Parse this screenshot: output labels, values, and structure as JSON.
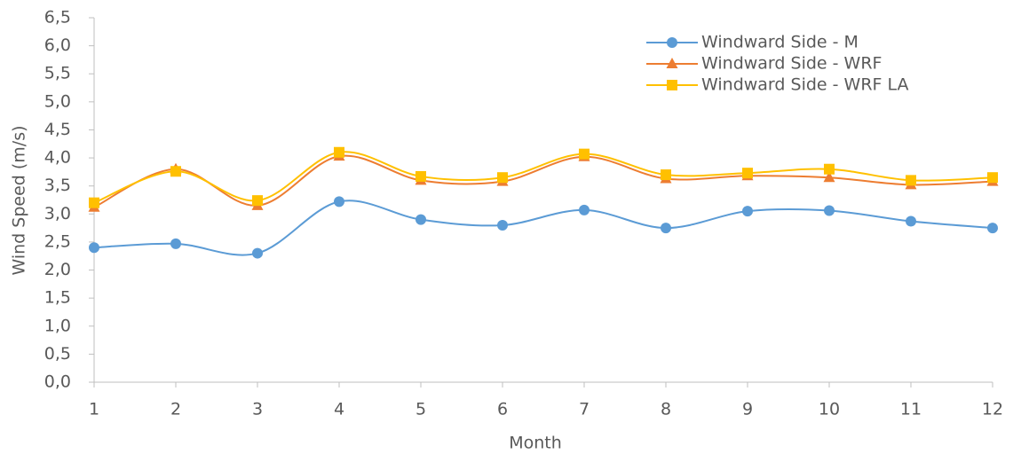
{
  "chart_data": {
    "type": "line",
    "smooth": true,
    "x_label": "Month",
    "y_label": "Wind Speed (m/s)",
    "x": [
      1,
      2,
      3,
      4,
      5,
      6,
      7,
      8,
      9,
      10,
      11,
      12
    ],
    "xlim": [
      1,
      12
    ],
    "xticks": [
      1,
      2,
      3,
      4,
      5,
      6,
      7,
      8,
      9,
      10,
      11,
      12
    ],
    "ylim": [
      0,
      6.5
    ],
    "yticks": [
      {
        "value": 0,
        "label": "0,0"
      },
      {
        "value": 0.5,
        "label": "0,5"
      },
      {
        "value": 1,
        "label": "1,0"
      },
      {
        "value": 1.5,
        "label": "1,5"
      },
      {
        "value": 2,
        "label": "2,0"
      },
      {
        "value": 2.5,
        "label": "2,5"
      },
      {
        "value": 3,
        "label": "3,0"
      },
      {
        "value": 3.5,
        "label": "3,5"
      },
      {
        "value": 4,
        "label": "4,0"
      },
      {
        "value": 4.5,
        "label": "4,5"
      },
      {
        "value": 5,
        "label": "5,0"
      },
      {
        "value": 5.5,
        "label": "5,5"
      },
      {
        "value": 6,
        "label": "6,0"
      },
      {
        "value": 6.5,
        "label": "6,5"
      }
    ],
    "grid": false,
    "legend": "upper right",
    "series": [
      {
        "name": "Windward Side - M",
        "color": "#5b9bd5",
        "marker": "circle",
        "values": [
          2.4,
          2.47,
          2.3,
          3.22,
          2.9,
          2.8,
          3.07,
          2.75,
          3.05,
          3.06,
          2.87,
          2.75
        ]
      },
      {
        "name": "Windward Side - WRF",
        "color": "#ed7d31",
        "marker": "triangle",
        "values": [
          3.12,
          3.8,
          3.15,
          4.03,
          3.6,
          3.58,
          4.02,
          3.63,
          3.68,
          3.65,
          3.52,
          3.58
        ]
      },
      {
        "name": "Windward Side - WRF LA",
        "color": "#ffc000",
        "marker": "square",
        "values": [
          3.2,
          3.76,
          3.24,
          4.1,
          3.67,
          3.65,
          4.07,
          3.7,
          3.73,
          3.8,
          3.6,
          3.65
        ]
      }
    ]
  }
}
